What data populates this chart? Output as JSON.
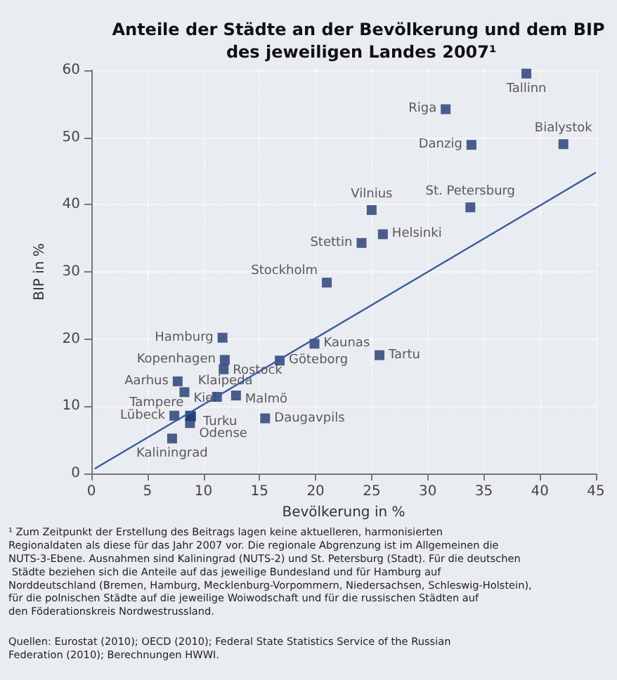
{
  "chart_data": {
    "type": "scatter",
    "title": "Anteile der Städte an der Bevölkerung und dem BIP des jeweiligen Landes 2007¹",
    "xlabel": "Bevölkerung in %",
    "ylabel": "BIP in %",
    "xlim": [
      0,
      45
    ],
    "xticks": [
      0,
      5,
      10,
      15,
      20,
      25,
      30,
      35,
      40,
      45
    ],
    "ylim": [
      0,
      60
    ],
    "yticks": [
      0,
      10,
      20,
      30,
      40,
      50,
      60
    ],
    "grid": true,
    "marker": "square",
    "series": [
      {
        "color": "#203a70",
        "x": [
          38.8,
          31.6,
          33.9,
          42.1,
          25.0,
          33.8,
          26.0,
          24.1,
          21.0,
          11.7,
          19.9,
          11.9,
          16.8,
          25.7,
          11.8,
          7.7,
          11.2,
          8.3,
          12.9,
          8.8,
          7.4,
          8.9,
          8.8,
          15.5,
          7.2
        ],
        "values": [
          59.5,
          54.2,
          48.9,
          49.0,
          39.2,
          39.6,
          35.6,
          34.3,
          28.4,
          20.2,
          19.3,
          16.9,
          16.8,
          17.6,
          15.5,
          13.7,
          11.4,
          12.1,
          11.6,
          8.6,
          8.6,
          8.5,
          7.5,
          8.2,
          5.2
        ],
        "value_labels": [
          "Tallinn",
          "Riga",
          "Danzig",
          "Bialystok",
          "Vilnius",
          "St. Petersburg",
          "Helsinki",
          "Stettin",
          "Stockholm",
          "Hamburg",
          "Kaunas",
          "Kopenhagen",
          "Göteborg",
          "Tartu",
          "Rostock",
          "Aarhus",
          "Klaipeda",
          "Kiel",
          "Malmö",
          "Tampere",
          "Lübeck",
          "Turku",
          "Odense",
          "Daugavpils",
          "Kaliningrad"
        ]
      },
      {
        "type": "line",
        "color": "#3a5a9c",
        "x": [
          0.3,
          45
        ],
        "values": [
          0.7,
          44.8
        ],
        "marker": "none"
      }
    ],
    "annotations": [
      "¹ Zum Zeitpunkt der Erstellung des Beitrags lagen keine aktuelleren, harmonisierten Regionaldaten als diese für das Jahr 2007 vor. Die regionale Abgrenzung ist im Allgemeinen die NUTS-3-Ebene. Ausnahmen sind Kaliningrad (NUTS-2) und St. Petersburg (Stadt). Für die deutschen Städte beziehen sich die Anteile auf das jeweilige Bundesland und für Hamburg auf Norddeutschland (Bremen, Hamburg, Mecklenburg-Vorpommern, Niedersachsen, Schleswig-Holstein), für die polnischen Städte auf die jeweilige Woiwodschaft und für die russischen Städten auf den Föderationskreis Nordwestrussland.",
      "Quellen: Eurostat (2010); OECD (2010); Federal State Statistics Service of the Russian Federation (2010); Berechnungen HWWI."
    ]
  }
}
